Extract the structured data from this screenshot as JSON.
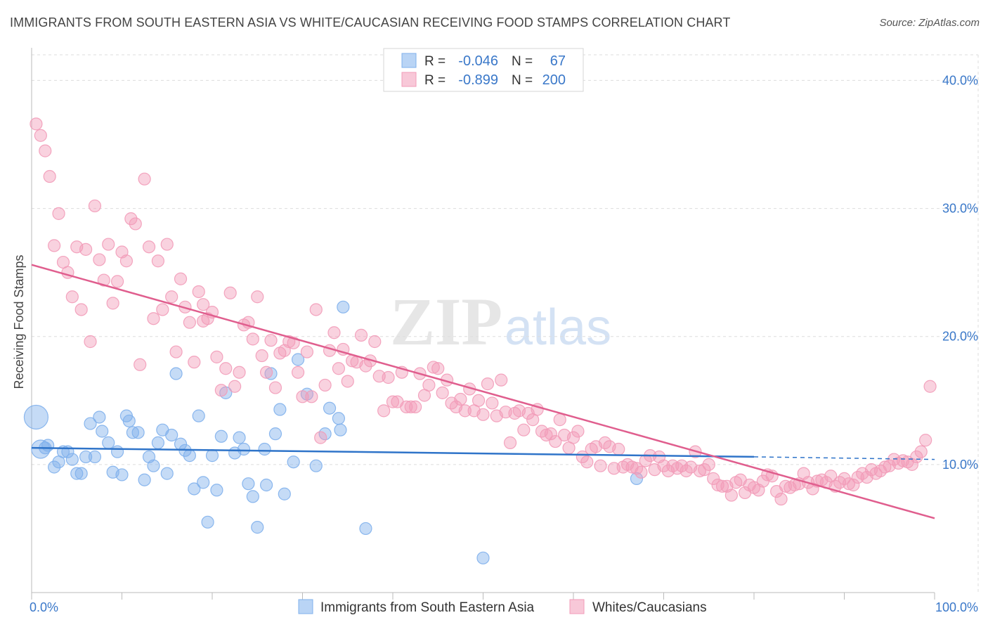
{
  "title": "IMMIGRANTS FROM SOUTH EASTERN ASIA VS WHITE/CAUCASIAN RECEIVING FOOD STAMPS CORRELATION CHART",
  "source": "Source: ZipAtlas.com",
  "watermark": {
    "zip": "ZIP",
    "atlas": "atlas"
  },
  "colors": {
    "blue": "#7fb0ec",
    "blue_line": "#2f74c9",
    "pink": "#f29bb8",
    "pink_line": "#e05e8e",
    "axis_text": "#3a78c9",
    "grid": "#dddddd"
  },
  "legend": {
    "rows": [
      {
        "r_label": "R =",
        "r_value": "-0.046",
        "n_label": "N =",
        "n_value": "67",
        "series": "blue"
      },
      {
        "r_label": "R =",
        "r_value": "-0.899",
        "n_label": "N =",
        "n_value": "200",
        "series": "pink"
      }
    ]
  },
  "bottom_legend": [
    {
      "label": "Immigrants from South Eastern Asia",
      "series": "blue"
    },
    {
      "label": "Whites/Caucasians",
      "series": "pink"
    }
  ],
  "chart_data": {
    "type": "scatter",
    "title": "IMMIGRANTS FROM SOUTH EASTERN ASIA VS WHITE/CAUCASIAN RECEIVING FOOD STAMPS CORRELATION CHART",
    "xlabel": "",
    "ylabel": "Receiving Food Stamps",
    "xlim": [
      0,
      100
    ],
    "ylim": [
      0,
      42
    ],
    "x_tick_labels": [
      {
        "value": 0,
        "label": "0.0%"
      },
      {
        "value": 100,
        "label": "100.0%"
      }
    ],
    "y_tick_labels": [
      {
        "value": 10,
        "label": "10.0%"
      },
      {
        "value": 20,
        "label": "20.0%"
      },
      {
        "value": 30,
        "label": "30.0%"
      },
      {
        "value": 40,
        "label": "40.0%"
      }
    ],
    "grid": true,
    "legend_position": "top-center",
    "series": [
      {
        "name": "Immigrants from South Eastern Asia",
        "color": "#7fb0ec",
        "trend": {
          "x": [
            0,
            80
          ],
          "y": [
            11.3,
            10.6
          ],
          "dashed_to": [
            100,
            10.4
          ]
        },
        "points": [
          [
            0.5,
            13.7,
            3
          ],
          [
            1,
            11.2,
            2
          ],
          [
            1.5,
            11.3,
            1
          ],
          [
            1.8,
            11.5,
            1
          ],
          [
            2.5,
            9.8,
            1
          ],
          [
            3,
            10.2,
            1
          ],
          [
            3.5,
            11.0,
            1
          ],
          [
            4,
            11.0,
            1
          ],
          [
            4.5,
            10.4,
            1
          ],
          [
            5,
            9.3,
            1
          ],
          [
            5.5,
            9.3,
            1
          ],
          [
            6,
            10.6,
            1
          ],
          [
            6.5,
            13.2,
            1
          ],
          [
            7,
            10.6,
            1
          ],
          [
            7.5,
            13.7,
            1
          ],
          [
            7.8,
            12.6,
            1
          ],
          [
            8.5,
            11.7,
            1
          ],
          [
            9,
            9.4,
            1
          ],
          [
            9.5,
            11.0,
            1
          ],
          [
            10,
            9.2,
            1
          ],
          [
            10.5,
            13.8,
            1
          ],
          [
            10.8,
            13.4,
            1
          ],
          [
            11.2,
            12.5,
            1
          ],
          [
            11.8,
            12.5,
            1
          ],
          [
            12.5,
            8.8,
            1
          ],
          [
            13,
            10.6,
            1
          ],
          [
            13.5,
            9.9,
            1
          ],
          [
            14,
            11.7,
            1
          ],
          [
            14.5,
            12.7,
            1
          ],
          [
            15,
            9.3,
            1
          ],
          [
            15.5,
            12.3,
            1
          ],
          [
            16,
            17.1,
            1
          ],
          [
            16.5,
            11.6,
            1
          ],
          [
            17,
            11.1,
            1
          ],
          [
            17.5,
            10.7,
            1
          ],
          [
            18,
            8.1,
            1
          ],
          [
            18.5,
            13.8,
            1
          ],
          [
            19,
            8.6,
            1
          ],
          [
            19.5,
            5.5,
            1
          ],
          [
            20,
            10.7,
            1
          ],
          [
            20.5,
            8.0,
            1
          ],
          [
            21,
            12.2,
            1
          ],
          [
            21.5,
            15.6,
            1
          ],
          [
            22.5,
            10.9,
            1
          ],
          [
            23,
            12.1,
            1
          ],
          [
            23.5,
            11.2,
            1
          ],
          [
            24,
            8.5,
            1
          ],
          [
            24.5,
            7.5,
            1
          ],
          [
            25,
            5.1,
            1
          ],
          [
            25.8,
            11.2,
            1
          ],
          [
            26,
            8.4,
            1
          ],
          [
            26.5,
            17.1,
            1
          ],
          [
            27,
            12.4,
            1
          ],
          [
            27.5,
            14.3,
            1
          ],
          [
            28,
            7.7,
            1
          ],
          [
            29,
            10.2,
            1
          ],
          [
            29.5,
            18.2,
            1
          ],
          [
            30.5,
            15.5,
            1
          ],
          [
            31.5,
            9.9,
            1
          ],
          [
            32.5,
            12.4,
            1
          ],
          [
            33,
            14.4,
            1
          ],
          [
            34,
            13.6,
            1
          ],
          [
            34.2,
            12.7,
            1
          ],
          [
            34.5,
            22.3,
            1
          ],
          [
            37,
            5.0,
            1
          ],
          [
            50,
            2.7,
            1
          ],
          [
            67,
            8.9,
            1
          ]
        ]
      },
      {
        "name": "Whites/Caucasians",
        "color": "#f29bb8",
        "trend": {
          "x": [
            0,
            100
          ],
          "y": [
            25.6,
            5.8
          ]
        },
        "points": [
          [
            0.5,
            36.6
          ],
          [
            1,
            35.7
          ],
          [
            1.5,
            34.5
          ],
          [
            2,
            32.5
          ],
          [
            2.5,
            27.1
          ],
          [
            3,
            29.6
          ],
          [
            3.5,
            25.8
          ],
          [
            4,
            25.0
          ],
          [
            4.5,
            23.1
          ],
          [
            5,
            27.0
          ],
          [
            5.5,
            22.1
          ],
          [
            6,
            26.8
          ],
          [
            6.5,
            19.6
          ],
          [
            7,
            30.2
          ],
          [
            7.5,
            26.0
          ],
          [
            8,
            24.4
          ],
          [
            8.5,
            27.2
          ],
          [
            9,
            22.6
          ],
          [
            9.5,
            24.3
          ],
          [
            10,
            26.6
          ],
          [
            10.5,
            25.9
          ],
          [
            11,
            29.2
          ],
          [
            11.5,
            28.8
          ],
          [
            12,
            17.8
          ],
          [
            12.5,
            32.3
          ],
          [
            13,
            27.0
          ],
          [
            13.5,
            21.4
          ],
          [
            14,
            25.9
          ],
          [
            14.5,
            22.1
          ],
          [
            15,
            27.2
          ],
          [
            15.5,
            23.1
          ],
          [
            16,
            18.8
          ],
          [
            16.5,
            24.5
          ],
          [
            17,
            22.3
          ],
          [
            17.5,
            21.1
          ],
          [
            18,
            18.0
          ],
          [
            18.5,
            23.5
          ],
          [
            19,
            21.2
          ],
          [
            19.5,
            21.4
          ],
          [
            20,
            21.9
          ],
          [
            20.5,
            18.4
          ],
          [
            21,
            15.8
          ],
          [
            21.5,
            17.5
          ],
          [
            22,
            23.4
          ],
          [
            22.5,
            16.1
          ],
          [
            23,
            17.2
          ],
          [
            23.5,
            20.9
          ],
          [
            24,
            21.1
          ],
          [
            24.5,
            19.8
          ],
          [
            25,
            23.1
          ],
          [
            25.5,
            18.5
          ],
          [
            26,
            17.2
          ],
          [
            26.5,
            19.7
          ],
          [
            27,
            16.0
          ],
          [
            27.5,
            18.7
          ],
          [
            28,
            18.9
          ],
          [
            28.5,
            19.6
          ],
          [
            29,
            19.5
          ],
          [
            29.5,
            17.2
          ],
          [
            30,
            15.3
          ],
          [
            30.5,
            18.8
          ],
          [
            31,
            15.3
          ],
          [
            31.5,
            22.1
          ],
          [
            32,
            12.1
          ],
          [
            32.5,
            16.2
          ],
          [
            33,
            18.9
          ],
          [
            33.5,
            20.3
          ],
          [
            34,
            17.5
          ],
          [
            34.5,
            19.0
          ],
          [
            35,
            16.5
          ],
          [
            35.5,
            18.1
          ],
          [
            36,
            18.0
          ],
          [
            36.5,
            20.1
          ],
          [
            37,
            17.7
          ],
          [
            37.5,
            18.1
          ],
          [
            38,
            19.6
          ],
          [
            38.5,
            16.9
          ],
          [
            39,
            14.2
          ],
          [
            39.5,
            16.8
          ],
          [
            40,
            14.9
          ],
          [
            40.5,
            14.9
          ],
          [
            41,
            17.2
          ],
          [
            41.5,
            14.5
          ],
          [
            42,
            14.5
          ],
          [
            42.5,
            14.5
          ],
          [
            43,
            17.1
          ],
          [
            43.5,
            15.4
          ],
          [
            44,
            16.2
          ],
          [
            44.5,
            17.6
          ],
          [
            45,
            17.5
          ],
          [
            45.5,
            15.6
          ],
          [
            46,
            16.6
          ],
          [
            46.5,
            14.8
          ],
          [
            47,
            14.5
          ],
          [
            47.5,
            15.1
          ],
          [
            48,
            14.2
          ],
          [
            48.5,
            15.9
          ],
          [
            49,
            14.2
          ],
          [
            49.5,
            15.0
          ],
          [
            50,
            13.9
          ],
          [
            50.5,
            16.3
          ],
          [
            51,
            14.8
          ],
          [
            51.5,
            13.8
          ],
          [
            52,
            16.6
          ],
          [
            52.5,
            14.1
          ],
          [
            53,
            11.7
          ],
          [
            53.5,
            14.0
          ],
          [
            54,
            14.2
          ],
          [
            54.5,
            12.7
          ],
          [
            55,
            14.0
          ],
          [
            55.5,
            13.5
          ],
          [
            56,
            14.3
          ],
          [
            56.5,
            12.6
          ],
          [
            57,
            12.3
          ],
          [
            57.5,
            12.4
          ],
          [
            58,
            11.8
          ],
          [
            58.5,
            13.5
          ],
          [
            59,
            12.3
          ],
          [
            59.5,
            11.3
          ],
          [
            60,
            12.1
          ],
          [
            60.5,
            12.6
          ],
          [
            61,
            10.6
          ],
          [
            61.5,
            10.2
          ],
          [
            62,
            11.2
          ],
          [
            62.5,
            11.4
          ],
          [
            63,
            9.9
          ],
          [
            63.5,
            11.7
          ],
          [
            64,
            11.4
          ],
          [
            64.5,
            9.7
          ],
          [
            65,
            11.2
          ],
          [
            65.5,
            9.8
          ],
          [
            66,
            10.0
          ],
          [
            66.5,
            9.8
          ],
          [
            67,
            9.7
          ],
          [
            67.5,
            9.4
          ],
          [
            68,
            10.3
          ],
          [
            68.5,
            10.7
          ],
          [
            69,
            9.6
          ],
          [
            69.5,
            10.6
          ],
          [
            70,
            9.9
          ],
          [
            70.5,
            9.5
          ],
          [
            71,
            9.9
          ],
          [
            71.5,
            9.7
          ],
          [
            72,
            9.9
          ],
          [
            72.5,
            9.5
          ],
          [
            73,
            9.8
          ],
          [
            73.5,
            11.0
          ],
          [
            74,
            9.5
          ],
          [
            74.5,
            9.6
          ],
          [
            75,
            10.0
          ],
          [
            75.5,
            8.9
          ],
          [
            76,
            8.4
          ],
          [
            76.5,
            8.3
          ],
          [
            77,
            8.3
          ],
          [
            77.5,
            7.6
          ],
          [
            78,
            8.6
          ],
          [
            78.5,
            8.8
          ],
          [
            79,
            7.8
          ],
          [
            79.5,
            8.4
          ],
          [
            80,
            8.2
          ],
          [
            80.5,
            8.0
          ],
          [
            81,
            8.7
          ],
          [
            81.5,
            9.2
          ],
          [
            82,
            9.1
          ],
          [
            82.5,
            7.9
          ],
          [
            83,
            7.3
          ],
          [
            83.5,
            8.3
          ],
          [
            84,
            8.2
          ],
          [
            84.5,
            8.4
          ],
          [
            85,
            8.5
          ],
          [
            85.5,
            9.3
          ],
          [
            86,
            8.6
          ],
          [
            86.5,
            8.1
          ],
          [
            87,
            8.7
          ],
          [
            87.5,
            8.8
          ],
          [
            88,
            8.6
          ],
          [
            88.5,
            9.1
          ],
          [
            89,
            8.3
          ],
          [
            89.5,
            8.6
          ],
          [
            90,
            8.9
          ],
          [
            90.5,
            8.5
          ],
          [
            91,
            8.4
          ],
          [
            91.5,
            9.0
          ],
          [
            92,
            9.3
          ],
          [
            92.5,
            9.0
          ],
          [
            93,
            9.6
          ],
          [
            93.5,
            9.3
          ],
          [
            94,
            9.5
          ],
          [
            94.5,
            9.8
          ],
          [
            95,
            9.9
          ],
          [
            95.5,
            10.4
          ],
          [
            96,
            10.1
          ],
          [
            96.5,
            10.3
          ],
          [
            97,
            10.2
          ],
          [
            97.5,
            10.0
          ],
          [
            98,
            10.6
          ],
          [
            98.5,
            11.0
          ],
          [
            99,
            11.9
          ],
          [
            99.5,
            16.1
          ],
          [
            19,
            22.5
          ]
        ]
      }
    ]
  }
}
